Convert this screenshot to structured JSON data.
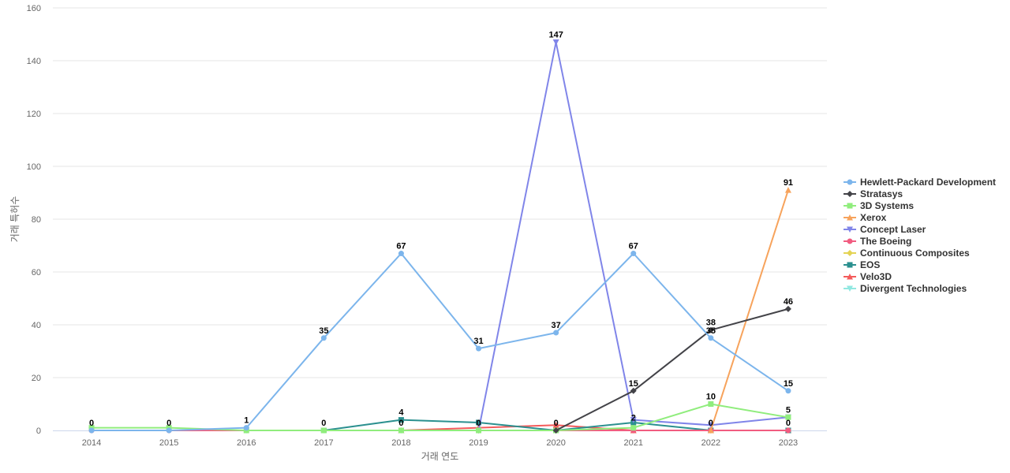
{
  "chart_data": {
    "type": "line",
    "title": "",
    "xlabel": "거래 연도",
    "ylabel": "거래 특허수",
    "x": [
      "2014",
      "2015",
      "2016",
      "2017",
      "2018",
      "2019",
      "2020",
      "2021",
      "2022",
      "2023"
    ],
    "ylim": [
      0,
      160
    ],
    "yticks": [
      0,
      20,
      40,
      60,
      80,
      100,
      120,
      140,
      160
    ],
    "grid": true,
    "legend_position": "right",
    "series": [
      {
        "name": "Hewlett-Packard Development",
        "color": "#7cb5ec",
        "marker": "circle",
        "values": [
          0,
          0,
          1,
          35,
          67,
          31,
          37,
          67,
          35,
          15
        ],
        "show_labels": true
      },
      {
        "name": "Stratasys",
        "color": "#434348",
        "marker": "diamond",
        "values": [
          null,
          null,
          null,
          null,
          null,
          null,
          0,
          15,
          38,
          46
        ],
        "show_labels": true
      },
      {
        "name": "3D Systems",
        "color": "#90ed7d",
        "marker": "square",
        "values": [
          1,
          1,
          0,
          0,
          0,
          0,
          0,
          1,
          10,
          5
        ],
        "show_labels": false
      },
      {
        "name": "Xerox",
        "color": "#f7a35c",
        "marker": "triangle",
        "values": [
          null,
          null,
          null,
          null,
          null,
          null,
          null,
          null,
          0,
          91
        ],
        "show_labels": true
      },
      {
        "name": "Concept Laser",
        "color": "#8085e9",
        "marker": "triangle-down",
        "values": [
          null,
          null,
          null,
          null,
          null,
          0,
          147,
          4,
          2,
          5
        ],
        "show_labels": true
      },
      {
        "name": "The Boeing",
        "color": "#f15c80",
        "marker": "circle",
        "values": [
          0,
          0,
          0,
          0,
          0,
          0,
          0,
          0,
          0,
          0
        ],
        "show_labels": false
      },
      {
        "name": "Continuous Composites",
        "color": "#e4d354",
        "marker": "diamond",
        "values": [
          null,
          null,
          null,
          null,
          null,
          0,
          0,
          0,
          0,
          0
        ],
        "show_labels": false
      },
      {
        "name": "EOS",
        "color": "#2b908f",
        "marker": "square",
        "values": [
          null,
          null,
          null,
          0,
          4,
          3,
          0,
          3,
          0,
          0
        ],
        "show_labels": false
      },
      {
        "name": "Velo3D",
        "color": "#f45b5b",
        "marker": "triangle",
        "values": [
          null,
          null,
          null,
          null,
          0,
          1,
          2,
          0,
          0,
          0
        ],
        "show_labels": false
      },
      {
        "name": "Divergent Technologies",
        "color": "#91e8e1",
        "marker": "triangle-down",
        "values": [
          0,
          0,
          0,
          0,
          0,
          0,
          0,
          0,
          0,
          0
        ],
        "show_labels": false
      }
    ],
    "annotations": [
      {
        "x": "2014",
        "y": 0,
        "text": "0"
      },
      {
        "x": "2015",
        "y": 0,
        "text": "0"
      },
      {
        "x": "2016",
        "y": 1,
        "text": "1"
      },
      {
        "x": "2017",
        "y": 0,
        "text": "0"
      },
      {
        "x": "2017",
        "y": 35,
        "text": "35"
      },
      {
        "x": "2018",
        "y": 0,
        "text": "0"
      },
      {
        "x": "2018",
        "y": 4,
        "text": "4"
      },
      {
        "x": "2018",
        "y": 67,
        "text": "67"
      },
      {
        "x": "2019",
        "y": 0,
        "text": "0"
      },
      {
        "x": "2019",
        "y": 31,
        "text": "31"
      },
      {
        "x": "2020",
        "y": 0,
        "text": "0"
      },
      {
        "x": "2020",
        "y": 37,
        "text": "37"
      },
      {
        "x": "2020",
        "y": 147,
        "text": "147"
      },
      {
        "x": "2021",
        "y": 2,
        "text": "2"
      },
      {
        "x": "2021",
        "y": 15,
        "text": "15"
      },
      {
        "x": "2021",
        "y": 67,
        "text": "67"
      },
      {
        "x": "2022",
        "y": 0,
        "text": "0"
      },
      {
        "x": "2022",
        "y": 10,
        "text": "10"
      },
      {
        "x": "2022",
        "y": 35,
        "text": "35"
      },
      {
        "x": "2022",
        "y": 38,
        "text": "38"
      },
      {
        "x": "2023",
        "y": 0,
        "text": "0"
      },
      {
        "x": "2023",
        "y": 5,
        "text": "5"
      },
      {
        "x": "2023",
        "y": 15,
        "text": "15"
      },
      {
        "x": "2023",
        "y": 46,
        "text": "46"
      },
      {
        "x": "2023",
        "y": 91,
        "text": "91"
      }
    ]
  }
}
